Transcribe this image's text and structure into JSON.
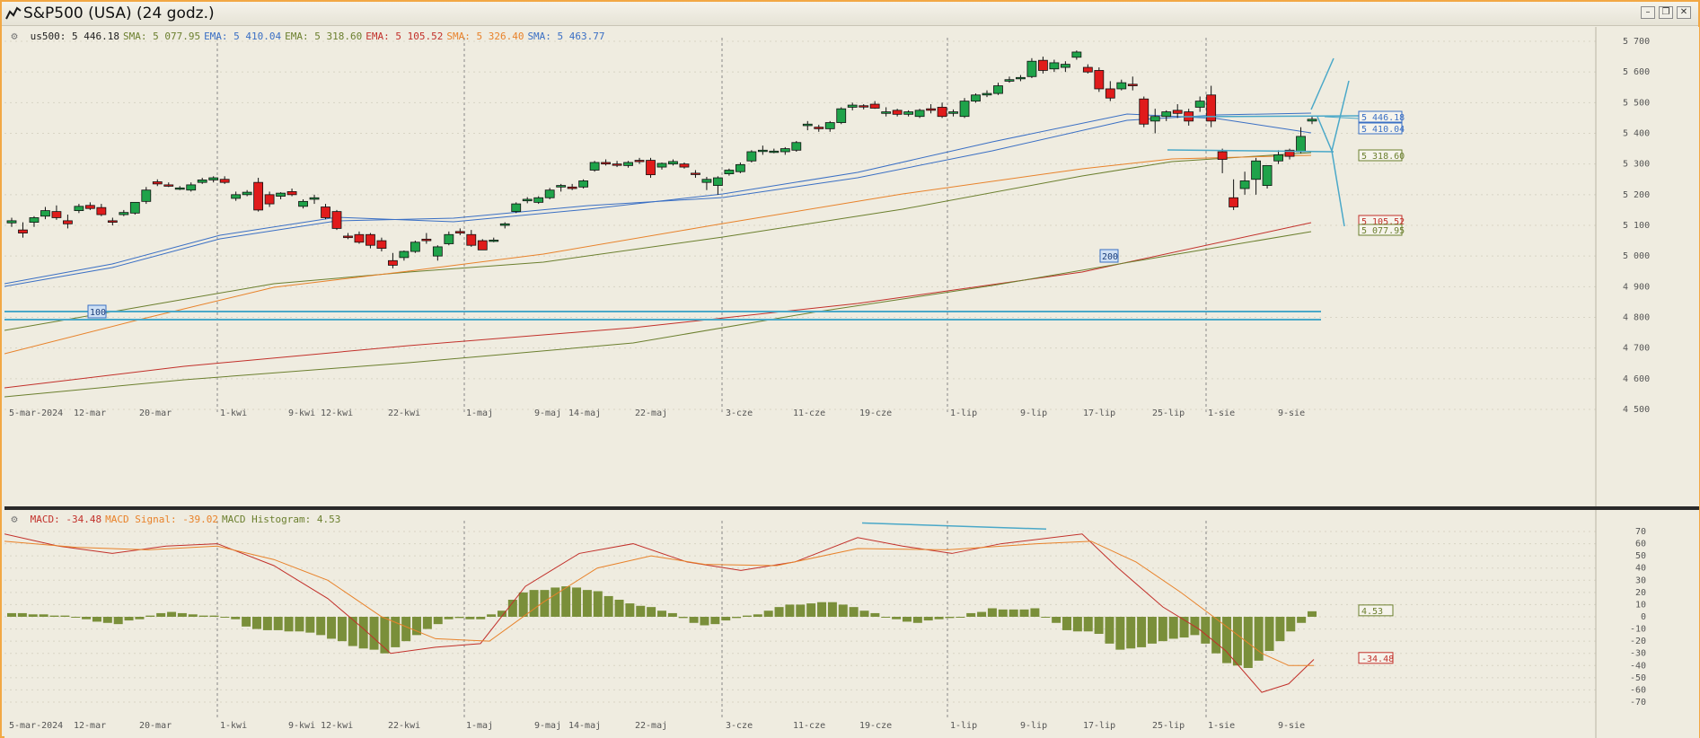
{
  "window": {
    "title": "S&P500 (USA) (24 godz.)",
    "icon": "chart-line-icon",
    "buttons": [
      "minimize-icon",
      "restore-icon",
      "close-icon"
    ]
  },
  "main_chart": {
    "legend": [
      {
        "label": "us500:",
        "value": "5 446.18",
        "color": "#222222"
      },
      {
        "label": "SMA:",
        "value": "5 077.95",
        "color": "#6b7f2e"
      },
      {
        "label": "EMA:",
        "value": "5 410.04",
        "color": "#3a6fc4"
      },
      {
        "label": "EMA:",
        "value": "5 318.60",
        "color": "#6b7f2e"
      },
      {
        "label": "EMA:",
        "value": "5 105.52",
        "color": "#c2302a"
      },
      {
        "label": "SMA:",
        "value": "5 326.40",
        "color": "#e8822a"
      },
      {
        "label": "SMA:",
        "value": "5 463.77",
        "color": "#3a6fc4"
      }
    ],
    "y_ticks": [
      "5 700",
      "5 600",
      "5 500",
      "5 400",
      "5 300",
      "5 200",
      "5 100",
      "5 000",
      "4 900",
      "4 800",
      "4 700",
      "4 600",
      "4 500"
    ],
    "x_ticks": [
      "5-mar-2024",
      "12-mar",
      "20-mar",
      "1-kwi",
      "9-kwi",
      "12-kwi",
      "22-kwi",
      "1-maj",
      "9-maj",
      "14-maj",
      "22-maj",
      "3-cze",
      "11-cze",
      "19-cze",
      "1-lip",
      "9-lip",
      "17-lip",
      "25-lip",
      "1-sie",
      "9-sie"
    ],
    "price_tags": [
      {
        "text": "5 446.18",
        "color": "#3a6fc4"
      },
      {
        "text": "5 410.04",
        "color": "#3a6fc4"
      },
      {
        "text": "5 318.60",
        "color": "#6b7f2e"
      },
      {
        "text": "5 105.52",
        "color": "#c2302a"
      },
      {
        "text": "5 077.95",
        "color": "#6b7f2e"
      }
    ],
    "markers": [
      "100",
      "200"
    ]
  },
  "macd_chart": {
    "legend": [
      {
        "label": "MACD:",
        "value": "-34.48",
        "color": "#c2302a"
      },
      {
        "label": "MACD Signal:",
        "value": "-39.02",
        "color": "#e8822a"
      },
      {
        "label": "MACD Histogram:",
        "value": "4.53",
        "color": "#6b7f2e"
      }
    ],
    "y_ticks": [
      "70",
      "60",
      "50",
      "40",
      "30",
      "20",
      "10",
      "0",
      "-10",
      "-20",
      "-30",
      "-40",
      "-50",
      "-60",
      "-70"
    ],
    "value_tags": [
      {
        "text": "4.53",
        "color": "#6b7f2e"
      },
      {
        "text": "-34.48",
        "color": "#c2302a"
      }
    ]
  },
  "colors": {
    "up_candle": "#1fa34a",
    "down_candle": "#e01b1b",
    "trendline": "#4aa8c8",
    "histogram": "#7a8f3a",
    "grid": "#c9c5b5"
  }
}
